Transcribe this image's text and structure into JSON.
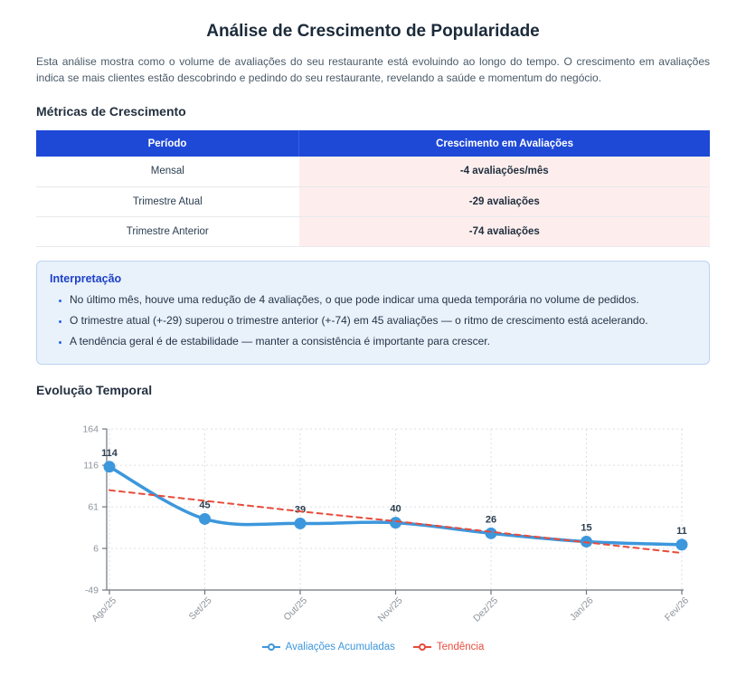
{
  "page": {
    "title": "Análise de Crescimento de Popularidade",
    "intro": "Esta análise mostra como o volume de avaliações do seu restaurante está evoluindo ao longo do tempo. O crescimento em avaliações indica se mais clientes estão descobrindo e pedindo do seu restaurante, revelando a saúde e momentum do negócio."
  },
  "metrics_section": {
    "heading": "Métricas de Crescimento",
    "table": {
      "headers": [
        "Período",
        "Crescimento em Avaliações"
      ],
      "rows": [
        {
          "period": "Mensal",
          "value": "-4 avaliações/mês"
        },
        {
          "period": "Trimestre Atual",
          "value": "-29 avaliações"
        },
        {
          "period": "Trimestre Anterior",
          "value": "-74 avaliações"
        }
      ]
    }
  },
  "interpretation": {
    "heading": "Interpretação",
    "bullets": [
      "No último mês, houve uma redução de 4 avaliações, o que pode indicar uma queda temporária no volume de pedidos.",
      "O trimestre atual (+-29) superou o trimestre anterior (+-74) em 45 avaliações — o ritmo de crescimento está acelerando.",
      "A tendência geral é de estabilidade — manter a consistência é importante para crescer."
    ]
  },
  "evolution_section": {
    "heading": "Evolução Temporal"
  },
  "chart_data": {
    "type": "line",
    "x": [
      "Ago/25",
      "Set/25",
      "Out/25",
      "Nov/25",
      "Dez/25",
      "Jan/26",
      "Fev/26"
    ],
    "series": [
      {
        "name": "Avaliações Acumuladas",
        "values": [
          114,
          45,
          39,
          40,
          26,
          15,
          11
        ],
        "color": "#3d97dc",
        "smooth": true,
        "markers": true,
        "dash": null,
        "width": 3.5,
        "point_labels": true
      },
      {
        "name": "Tendência",
        "values": [
          83,
          69,
          55,
          42,
          28,
          14,
          0
        ],
        "color": "#e74c3c",
        "smooth": false,
        "markers": false,
        "dash": "6 5",
        "width": 2,
        "point_labels": false
      }
    ],
    "yticks": [
      164,
      116,
      61,
      6,
      -49
    ],
    "ylim": [
      -49,
      164
    ],
    "grid": true,
    "legend_position": "bottom",
    "colors": {
      "grid": "#dcdfe4",
      "axis": "#6f767e",
      "tick_text": "#8d949c",
      "point_label": "#2c3e50"
    }
  }
}
